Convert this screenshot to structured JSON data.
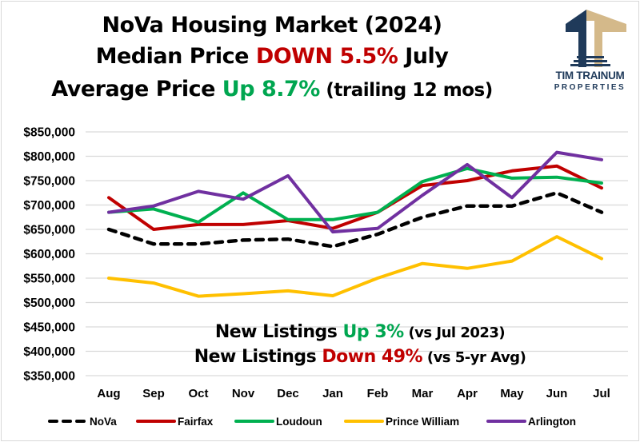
{
  "header": {
    "line1": "NoVa Housing Market (2024)",
    "line2_prefix": "Median Price ",
    "line2_highlight": "DOWN 5.5%",
    "line2_suffix": " July",
    "line3_prefix": "Average Price ",
    "line3_highlight": "Up 8.7%",
    "line3_suffix": " (trailing 12 mos)"
  },
  "logo": {
    "name_line1": "TIM TRAINUM",
    "name_line2": "PROPERTIES",
    "colors": {
      "navy": "#1f3a5a",
      "tan": "#d4b98a"
    }
  },
  "annotations": {
    "line1_prefix": "New Listings ",
    "line1_highlight": "Up 3%",
    "line1_suffix": " (vs Jul 2023)",
    "line2_prefix": "New Listings ",
    "line2_highlight": "Down 49%",
    "line2_suffix": " (vs 5-yr Avg)"
  },
  "colors": {
    "red": "#c00000",
    "green": "#00a650"
  },
  "chart_data": {
    "type": "line",
    "title": "NoVa Housing Market (2024) Median Price",
    "xlabel": "",
    "ylabel": "",
    "categories": [
      "Aug",
      "Sep",
      "Oct",
      "Nov",
      "Dec",
      "Jan",
      "Feb",
      "Mar",
      "Apr",
      "May",
      "Jun",
      "Jul"
    ],
    "ylim": [
      350000,
      850000
    ],
    "yticks": [
      850000,
      800000,
      750000,
      700000,
      650000,
      600000,
      550000,
      500000,
      450000,
      400000,
      350000
    ],
    "ytick_labels": [
      "$850,000",
      "$800,000",
      "$750,000",
      "$700,000",
      "$650,000",
      "$600,000",
      "$550,000",
      "$500,000",
      "$450,000",
      "$400,000",
      "$350,000"
    ],
    "grid": true,
    "legend_position": "bottom",
    "series": [
      {
        "name": "NoVa",
        "color": "#000000",
        "dashed": true,
        "values": [
          650000,
          620000,
          620000,
          628000,
          630000,
          615000,
          640000,
          675000,
          698000,
          698000,
          725000,
          685000
        ]
      },
      {
        "name": "Fairfax",
        "color": "#c00000",
        "dashed": false,
        "values": [
          715000,
          650000,
          660000,
          660000,
          668000,
          652000,
          685000,
          740000,
          750000,
          770000,
          780000,
          735000
        ]
      },
      {
        "name": "Loudoun",
        "color": "#00b050",
        "dashed": false,
        "values": [
          685000,
          692000,
          665000,
          725000,
          670000,
          670000,
          685000,
          748000,
          775000,
          755000,
          757000,
          745000
        ]
      },
      {
        "name": "Prince William",
        "color": "#ffc000",
        "dashed": false,
        "values": [
          550000,
          540000,
          513000,
          518000,
          524000,
          514000,
          550000,
          580000,
          570000,
          585000,
          635000,
          590000
        ]
      },
      {
        "name": "Arlington",
        "color": "#7030a0",
        "dashed": false,
        "values": [
          685000,
          698000,
          728000,
          712000,
          760000,
          645000,
          652000,
          720000,
          783000,
          715000,
          808000,
          793000
        ]
      }
    ]
  }
}
